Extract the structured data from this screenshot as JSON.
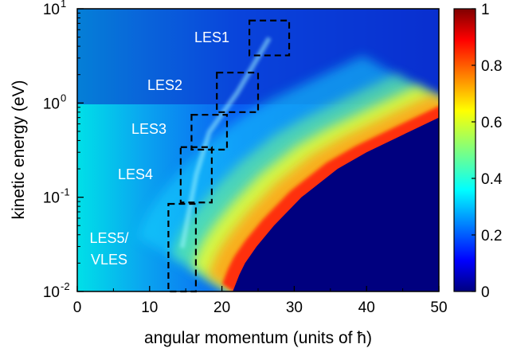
{
  "chart_data": {
    "type": "heatmap",
    "xlabel": "angular momentum (units of ħ)",
    "ylabel": "kinetic energy (eV)",
    "xlim": [
      0,
      50
    ],
    "ylim": [
      0.01,
      10
    ],
    "y_scale": "log",
    "x_ticks": [
      {
        "value": 0,
        "label": "0"
      },
      {
        "value": 10,
        "label": "10"
      },
      {
        "value": 20,
        "label": "20"
      },
      {
        "value": 30,
        "label": "30"
      },
      {
        "value": 40,
        "label": "40"
      },
      {
        "value": 50,
        "label": "50"
      }
    ],
    "y_ticks": [
      {
        "value": 0.01,
        "base": "10",
        "exp": "-2"
      },
      {
        "value": 0.1,
        "base": "10",
        "exp": "-1"
      },
      {
        "value": 1,
        "base": "10",
        "exp": "0"
      },
      {
        "value": 10,
        "base": "10",
        "exp": "1"
      }
    ],
    "colorbar": {
      "range": [
        0,
        1
      ],
      "colormap": "jet",
      "ticks": [
        {
          "value": 0,
          "label": "0"
        },
        {
          "value": 0.2,
          "label": "0.2"
        },
        {
          "value": 0.4,
          "label": "0.4"
        },
        {
          "value": 0.6,
          "label": "0.6"
        },
        {
          "value": 0.8,
          "label": "0.8"
        },
        {
          "value": 1,
          "label": "1"
        }
      ]
    },
    "classical_cutoff": [
      {
        "E": 0.01,
        "L": 21.5
      },
      {
        "E": 0.015,
        "L": 22.4
      },
      {
        "E": 0.02,
        "L": 23.2
      },
      {
        "E": 0.03,
        "L": 24.8
      },
      {
        "E": 0.05,
        "L": 27.2
      },
      {
        "E": 0.1,
        "L": 31
      },
      {
        "E": 0.2,
        "L": 36
      },
      {
        "E": 0.3,
        "L": 40
      },
      {
        "E": 0.5,
        "L": 46
      },
      {
        "E": 0.7,
        "L": 50
      }
    ],
    "regions": [
      {
        "name": "LES1",
        "label_lines": [
          "LES1"
        ],
        "x_range": [
          23.8,
          29.3
        ],
        "y_range": [
          3.2,
          7.5
        ]
      },
      {
        "name": "LES2",
        "label_lines": [
          "LES2"
        ],
        "x_range": [
          19.3,
          25.0
        ],
        "y_range": [
          0.8,
          2.1
        ]
      },
      {
        "name": "LES3",
        "label_lines": [
          "LES3"
        ],
        "x_range": [
          15.8,
          20.7
        ],
        "y_range": [
          0.32,
          0.75
        ]
      },
      {
        "name": "LES4",
        "label_lines": [
          "LES4"
        ],
        "x_range": [
          14.3,
          18.6
        ],
        "y_range": [
          0.088,
          0.34
        ]
      },
      {
        "name": "LES5/VLES",
        "label_lines": [
          "LES5/",
          "VLES"
        ],
        "x_range": [
          12.6,
          16.4
        ],
        "y_range": [
          0.01,
          0.085
        ]
      }
    ]
  }
}
